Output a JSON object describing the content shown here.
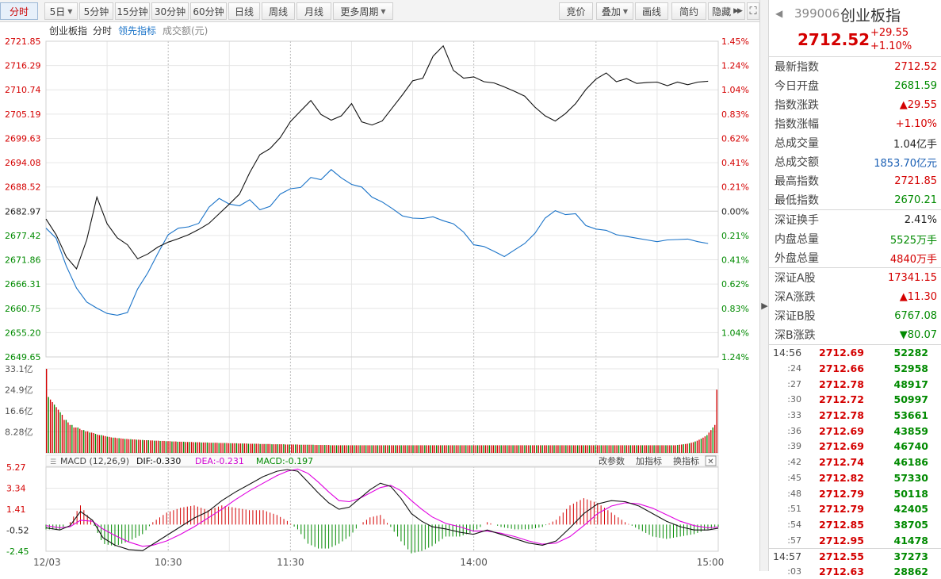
{
  "toolbar": {
    "left": [
      {
        "id": "period-1min",
        "label": "分时",
        "dd": false,
        "active": true
      },
      {
        "id": "period-5day",
        "label": "5日",
        "dd": true
      },
      {
        "id": "period-5min",
        "label": "5分钟"
      },
      {
        "id": "period-15min",
        "label": "15分钟"
      },
      {
        "id": "period-30min",
        "label": "30分钟"
      },
      {
        "id": "period-60min",
        "label": "60分钟"
      },
      {
        "id": "period-day",
        "label": "日线"
      },
      {
        "id": "period-week",
        "label": "周线"
      },
      {
        "id": "period-month",
        "label": "月线"
      },
      {
        "id": "period-more",
        "label": "更多周期",
        "dd": true
      }
    ],
    "right": [
      {
        "id": "auction",
        "label": "竞价"
      },
      {
        "id": "overlay",
        "label": "叠加",
        "dd": true
      },
      {
        "id": "draw",
        "label": "画线"
      },
      {
        "id": "simple",
        "label": "简约"
      },
      {
        "id": "hide",
        "label": "隐藏"
      }
    ]
  },
  "chart_header": {
    "name": "创业板指",
    "mode": "分时",
    "leading": "领先指标",
    "volume": "成交额(元)"
  },
  "price_axis_left": [
    "2721.85",
    "2716.29",
    "2710.74",
    "2705.19",
    "2699.63",
    "2694.08",
    "2688.52",
    "2682.97",
    "2677.42",
    "2671.86",
    "2666.31",
    "2660.75",
    "2655.20",
    "2649.65"
  ],
  "price_axis_right": [
    "1.45%",
    "1.24%",
    "1.04%",
    "0.83%",
    "0.62%",
    "0.41%",
    "0.21%",
    "0.00%",
    "0.21%",
    "0.41%",
    "0.62%",
    "0.83%",
    "1.04%",
    "1.24%"
  ],
  "volume_axis": [
    "33.1亿",
    "24.9亿",
    "16.6亿",
    "8.28亿"
  ],
  "macd_header": {
    "title": "MACD (12,26,9)",
    "dif": "DIF:-0.330",
    "dea": "DEA:-0.231",
    "macd": "MACD:-0.197",
    "adjust": "改参数",
    "add": "加指标",
    "switch": "换指标",
    "close": "✕"
  },
  "macd_axis": [
    "5.27",
    "3.34",
    "1.41",
    "-0.52",
    "-2.45"
  ],
  "time_axis": [
    "12/03",
    "10:30",
    "11:30",
    "14:00",
    "15:00"
  ],
  "colors": {
    "up": "#d40000",
    "down": "#008a00",
    "price_line": "#111111",
    "avg_line": "#1a73c8",
    "dif": "#111111",
    "dea": "#e000e0",
    "grid": "#e6e6e6"
  },
  "chart_data": {
    "type": "line",
    "prev_close": 2682.97,
    "price_range": [
      2649.65,
      2721.85
    ],
    "price": [
      [
        0,
        2681.2
      ],
      [
        5,
        2677.6
      ],
      [
        10,
        2672.5
      ],
      [
        15,
        2669.8
      ],
      [
        20,
        2676.4
      ],
      [
        25,
        2686.2
      ],
      [
        30,
        2680.1
      ],
      [
        35,
        2676.9
      ],
      [
        40,
        2675.3
      ],
      [
        45,
        2672.1
      ],
      [
        50,
        2673.2
      ],
      [
        55,
        2674.8
      ],
      [
        60,
        2675.9
      ],
      [
        65,
        2676.7
      ],
      [
        70,
        2677.6
      ],
      [
        75,
        2678.8
      ],
      [
        80,
        2680.2
      ],
      [
        85,
        2682.4
      ],
      [
        90,
        2684.6
      ],
      [
        95,
        2686.9
      ],
      [
        100,
        2691.8
      ],
      [
        105,
        2695.9
      ],
      [
        110,
        2697.3
      ],
      [
        115,
        2699.8
      ],
      [
        120,
        2703.5
      ],
      [
        125,
        2705.9
      ],
      [
        130,
        2708.3
      ],
      [
        135,
        2705.1
      ],
      [
        140,
        2703.8
      ],
      [
        145,
        2704.8
      ],
      [
        150,
        2707.6
      ],
      [
        155,
        2703.4
      ],
      [
        160,
        2702.7
      ],
      [
        165,
        2703.6
      ],
      [
        170,
        2706.6
      ],
      [
        175,
        2709.6
      ],
      [
        180,
        2712.8
      ],
      [
        185,
        2713.4
      ],
      [
        190,
        2718.4
      ],
      [
        195,
        2720.8
      ],
      [
        200,
        2715.2
      ],
      [
        205,
        2713.4
      ],
      [
        210,
        2713.7
      ],
      [
        215,
        2712.6
      ],
      [
        220,
        2712.3
      ],
      [
        225,
        2711.4
      ],
      [
        230,
        2710.4
      ],
      [
        235,
        2709.3
      ],
      [
        240,
        2706.8
      ],
      [
        245,
        2704.8
      ],
      [
        250,
        2703.6
      ],
      [
        255,
        2705.3
      ],
      [
        260,
        2707.6
      ],
      [
        265,
        2710.8
      ],
      [
        270,
        2713.2
      ],
      [
        275,
        2714.6
      ],
      [
        280,
        2712.6
      ],
      [
        285,
        2713.3
      ],
      [
        290,
        2712.2
      ],
      [
        295,
        2712.4
      ],
      [
        300,
        2712.5
      ],
      [
        305,
        2711.7
      ],
      [
        310,
        2712.5
      ],
      [
        315,
        2711.9
      ],
      [
        320,
        2712.5
      ],
      [
        325,
        2712.7
      ]
    ],
    "avg": [
      [
        0,
        2679.1
      ],
      [
        5,
        2676.8
      ],
      [
        10,
        2670.4
      ],
      [
        15,
        2665.4
      ],
      [
        20,
        2662.2
      ],
      [
        25,
        2660.8
      ],
      [
        30,
        2659.6
      ],
      [
        35,
        2659.2
      ],
      [
        40,
        2659.8
      ],
      [
        45,
        2665.2
      ],
      [
        50,
        2668.9
      ],
      [
        55,
        2673.4
      ],
      [
        60,
        2677.6
      ],
      [
        65,
        2679.1
      ],
      [
        70,
        2679.4
      ],
      [
        75,
        2680.2
      ],
      [
        80,
        2683.9
      ],
      [
        85,
        2685.9
      ],
      [
        90,
        2684.6
      ],
      [
        95,
        2684.2
      ],
      [
        100,
        2685.6
      ],
      [
        105,
        2683.3
      ],
      [
        110,
        2684.1
      ],
      [
        115,
        2686.9
      ],
      [
        120,
        2688.1
      ],
      [
        125,
        2688.4
      ],
      [
        130,
        2690.7
      ],
      [
        135,
        2690.2
      ],
      [
        140,
        2692.5
      ],
      [
        145,
        2690.6
      ],
      [
        150,
        2689.1
      ],
      [
        155,
        2688.5
      ],
      [
        160,
        2686.2
      ],
      [
        165,
        2685.1
      ],
      [
        170,
        2683.6
      ],
      [
        175,
        2681.9
      ],
      [
        180,
        2681.4
      ],
      [
        185,
        2681.3
      ],
      [
        190,
        2681.7
      ],
      [
        195,
        2680.8
      ],
      [
        200,
        2680.1
      ],
      [
        205,
        2678.2
      ],
      [
        210,
        2675.3
      ],
      [
        215,
        2674.9
      ],
      [
        220,
        2673.8
      ],
      [
        225,
        2672.6
      ],
      [
        230,
        2674.1
      ],
      [
        235,
        2675.6
      ],
      [
        240,
        2677.9
      ],
      [
        245,
        2681.4
      ],
      [
        250,
        2683.1
      ],
      [
        255,
        2682.2
      ],
      [
        260,
        2682.4
      ],
      [
        265,
        2679.7
      ],
      [
        270,
        2678.9
      ],
      [
        275,
        2678.6
      ],
      [
        280,
        2677.6
      ],
      [
        285,
        2677.2
      ],
      [
        290,
        2676.8
      ],
      [
        295,
        2676.4
      ],
      [
        300,
        2676.0
      ],
      [
        305,
        2676.4
      ],
      [
        310,
        2676.5
      ],
      [
        315,
        2676.6
      ],
      [
        320,
        2676.0
      ],
      [
        325,
        2675.6
      ]
    ],
    "volume_max": 33.1,
    "volume": [
      33.1,
      22,
      21,
      20,
      19,
      18,
      17,
      16,
      15,
      13,
      13,
      12,
      11,
      11,
      10,
      10,
      10,
      9.5,
      9,
      9,
      8.5,
      8.5,
      8,
      8,
      7.8,
      7.5,
      7.2,
      7,
      7,
      6.8,
      6.6,
      6.4,
      6.3,
      6.1,
      6,
      6,
      5.8,
      5.8,
      5.7,
      5.6,
      5.5,
      5.5,
      5.4,
      5.4,
      5.3,
      5.3,
      5.2,
      5.2,
      5.1,
      5.1,
      5,
      5,
      5,
      4.9,
      4.9,
      4.8,
      4.8,
      4.8,
      4.7,
      4.7,
      4.7,
      4.6,
      4.6,
      4.6,
      4.5,
      4.5,
      4.5,
      4.4,
      4.4,
      4.4,
      4.4,
      4.3,
      4.3,
      4.3,
      4.3,
      4.2,
      4.2,
      4.2,
      4.2,
      4.1,
      4.1,
      4.1,
      4.1,
      4,
      4,
      4,
      4,
      4,
      3.9,
      3.9,
      3.9,
      3.9,
      3.9,
      3.8,
      3.8,
      3.8,
      3.8,
      3.8,
      3.7,
      3.7,
      3.7,
      3.7,
      3.7,
      3.6,
      3.6,
      3.6,
      3.6,
      3.6,
      3.6,
      3.5,
      3.5,
      3.5,
      3.5,
      3.5,
      3.5,
      3.4,
      3.4,
      3.4,
      3.4,
      3.4,
      3.4,
      3.4,
      3.3,
      3.3,
      3.3,
      3.3,
      3.3,
      3.3,
      3.3,
      3.2,
      3.2,
      3.2,
      3.2,
      3.2,
      3.2,
      3.2,
      3.2,
      3.1,
      3.1,
      3.1,
      3.1,
      3.1,
      3.1,
      3.1,
      3.1,
      3,
      3,
      3,
      3,
      3,
      3,
      3,
      3,
      3,
      3,
      3,
      3,
      3,
      3,
      3,
      3,
      3,
      3,
      3,
      3,
      3,
      3,
      3,
      3,
      3,
      3,
      3,
      3,
      3,
      3,
      3,
      3,
      3,
      3,
      3,
      3,
      3,
      3,
      3,
      3,
      3,
      3,
      3,
      3,
      3,
      3,
      3,
      3,
      3,
      3,
      3,
      3,
      3,
      3,
      3,
      3,
      3,
      3,
      3,
      3,
      3,
      3,
      3,
      3,
      3,
      3,
      3,
      3,
      3,
      3,
      3,
      3,
      3,
      3,
      3,
      3,
      3,
      3,
      3,
      3,
      3,
      3,
      3,
      3,
      3,
      3,
      3,
      3,
      3,
      3,
      3,
      3,
      3,
      3,
      3,
      3,
      3,
      3,
      3,
      3,
      3,
      3,
      3,
      3,
      3,
      3,
      3,
      3,
      3,
      3,
      3,
      3,
      3,
      3,
      3,
      3,
      3,
      3,
      3,
      3,
      3,
      3,
      3,
      3,
      3,
      3,
      3,
      3,
      3,
      3,
      3,
      3,
      3,
      3,
      3,
      3,
      3,
      3,
      3,
      3,
      3,
      3,
      3,
      3,
      3,
      3,
      3,
      3,
      3,
      3,
      3,
      3,
      3,
      3,
      3,
      3,
      3,
      3,
      3,
      3,
      3,
      3,
      3,
      3,
      3,
      3,
      3,
      3,
      3,
      3,
      3,
      3,
      3,
      3,
      3,
      3,
      3,
      3.1,
      3.2,
      3.3,
      3.4,
      3.5,
      3.6,
      3.8,
      4,
      4.2,
      4.5,
      4.8,
      5.2,
      5.6,
      6,
      6.5,
      7,
      8,
      9,
      10,
      11,
      24.9
    ],
    "macd_range": [
      -2.45,
      5.27
    ],
    "dif": [
      [
        0,
        -0.3
      ],
      [
        8,
        -0.5
      ],
      [
        14,
        -0.1
      ],
      [
        20,
        1.2
      ],
      [
        27,
        0.4
      ],
      [
        33,
        -1.2
      ],
      [
        40,
        -1.9
      ],
      [
        48,
        -2.3
      ],
      [
        56,
        -2.4
      ],
      [
        62,
        -1.8
      ],
      [
        70,
        -1.0
      ],
      [
        78,
        -0.2
      ],
      [
        86,
        0.6
      ],
      [
        94,
        1.2
      ],
      [
        102,
        2.2
      ],
      [
        110,
        3.0
      ],
      [
        118,
        3.7
      ],
      [
        126,
        4.4
      ],
      [
        134,
        4.9
      ],
      [
        140,
        5.05
      ],
      [
        146,
        4.9
      ],
      [
        152,
        3.9
      ],
      [
        158,
        2.9
      ],
      [
        164,
        2.0
      ],
      [
        170,
        1.4
      ],
      [
        176,
        1.6
      ],
      [
        182,
        2.4
      ],
      [
        188,
        3.2
      ],
      [
        194,
        3.8
      ],
      [
        200,
        3.5
      ],
      [
        206,
        2.4
      ],
      [
        212,
        1.0
      ],
      [
        218,
        0.3
      ],
      [
        224,
        -0.2
      ],
      [
        232,
        -0.4
      ],
      [
        240,
        -0.7
      ],
      [
        248,
        -0.9
      ],
      [
        256,
        -0.5
      ],
      [
        264,
        -0.9
      ],
      [
        272,
        -1.3
      ],
      [
        280,
        -1.7
      ],
      [
        288,
        -1.9
      ],
      [
        296,
        -1.5
      ],
      [
        304,
        -0.3
      ],
      [
        312,
        1.0
      ],
      [
        320,
        1.9
      ],
      [
        328,
        2.2
      ],
      [
        336,
        2.1
      ],
      [
        344,
        1.7
      ],
      [
        352,
        1.0
      ],
      [
        360,
        0.3
      ],
      [
        368,
        -0.2
      ],
      [
        376,
        -0.5
      ],
      [
        384,
        -0.5
      ],
      [
        390,
        -0.33
      ]
    ],
    "dea": [
      [
        0,
        -0.1
      ],
      [
        8,
        -0.3
      ],
      [
        14,
        -0.2
      ],
      [
        20,
        0.4
      ],
      [
        27,
        0.3
      ],
      [
        33,
        -0.4
      ],
      [
        40,
        -1.0
      ],
      [
        48,
        -1.6
      ],
      [
        56,
        -2.0
      ],
      [
        62,
        -1.9
      ],
      [
        70,
        -1.5
      ],
      [
        78,
        -0.9
      ],
      [
        86,
        -0.2
      ],
      [
        94,
        0.6
      ],
      [
        102,
        1.4
      ],
      [
        110,
        2.3
      ],
      [
        118,
        3.1
      ],
      [
        126,
        3.8
      ],
      [
        134,
        4.5
      ],
      [
        140,
        4.9
      ],
      [
        146,
        5.1
      ],
      [
        152,
        4.7
      ],
      [
        158,
        3.9
      ],
      [
        164,
        3.0
      ],
      [
        170,
        2.2
      ],
      [
        176,
        2.1
      ],
      [
        182,
        2.4
      ],
      [
        188,
        2.9
      ],
      [
        194,
        3.4
      ],
      [
        200,
        3.6
      ],
      [
        206,
        3.1
      ],
      [
        212,
        2.2
      ],
      [
        218,
        1.4
      ],
      [
        224,
        0.7
      ],
      [
        232,
        0.1
      ],
      [
        240,
        -0.2
      ],
      [
        248,
        -0.6
      ],
      [
        256,
        -0.6
      ],
      [
        264,
        -0.8
      ],
      [
        272,
        -1.1
      ],
      [
        280,
        -1.5
      ],
      [
        288,
        -1.8
      ],
      [
        296,
        -1.7
      ],
      [
        304,
        -1.1
      ],
      [
        312,
        -0.1
      ],
      [
        320,
        1.0
      ],
      [
        328,
        1.7
      ],
      [
        336,
        2.0
      ],
      [
        344,
        1.9
      ],
      [
        352,
        1.5
      ],
      [
        360,
        0.9
      ],
      [
        368,
        0.3
      ],
      [
        376,
        -0.1
      ],
      [
        384,
        -0.3
      ],
      [
        390,
        -0.23
      ]
    ]
  },
  "panel": {
    "back": "◀",
    "code": "399006",
    "name": "创业板指",
    "current": "2712.52",
    "change": "+29.55",
    "change_pct": "+1.10%",
    "groups": [
      [
        {
          "label": "最新指数",
          "value": "2712.52",
          "c": "r"
        },
        {
          "label": "今日开盘",
          "value": "2681.59",
          "c": "g"
        },
        {
          "label": "指数涨跌",
          "value": "▲29.55",
          "c": "r"
        },
        {
          "label": "指数涨幅",
          "value": "+1.10%",
          "c": "r"
        },
        {
          "label": "总成交量",
          "value": "1.04亿手",
          "c": "k"
        },
        {
          "label": "总成交额",
          "value": "1853.70亿元",
          "c": "b"
        },
        {
          "label": "最高指数",
          "value": "2721.85",
          "c": "r"
        },
        {
          "label": "最低指数",
          "value": "2670.21",
          "c": "g"
        }
      ],
      [
        {
          "label": "深证换手",
          "value": "2.41%",
          "c": "k"
        },
        {
          "label": "内盘总量",
          "value": "5525万手",
          "c": "g"
        },
        {
          "label": "外盘总量",
          "value": "4840万手",
          "c": "r"
        }
      ],
      [
        {
          "label": "深证A股",
          "value": "17341.15",
          "c": "r"
        },
        {
          "label": "深A涨跌",
          "value": "▲11.30",
          "c": "r"
        },
        {
          "label": "深证B股",
          "value": "6767.08",
          "c": "g"
        },
        {
          "label": "深B涨跌",
          "value": "▼80.07",
          "c": "g"
        }
      ]
    ],
    "ticks": [
      {
        "t": "14:56",
        "p": "2712.69",
        "v": "52282",
        "big": true
      },
      {
        "t": ":24",
        "p": "2712.66",
        "v": "52958"
      },
      {
        "t": ":27",
        "p": "2712.78",
        "v": "48917"
      },
      {
        "t": ":30",
        "p": "2712.72",
        "v": "50997"
      },
      {
        "t": ":33",
        "p": "2712.78",
        "v": "53661"
      },
      {
        "t": ":36",
        "p": "2712.69",
        "v": "43859"
      },
      {
        "t": ":39",
        "p": "2712.69",
        "v": "46740"
      },
      {
        "t": ":42",
        "p": "2712.74",
        "v": "46186"
      },
      {
        "t": ":45",
        "p": "2712.82",
        "v": "57330"
      },
      {
        "t": ":48",
        "p": "2712.79",
        "v": "50118"
      },
      {
        "t": ":51",
        "p": "2712.79",
        "v": "42405"
      },
      {
        "t": ":54",
        "p": "2712.85",
        "v": "38705"
      },
      {
        "t": ":57",
        "p": "2712.95",
        "v": "41478"
      },
      {
        "t": "14:57",
        "p": "2712.55",
        "v": "37273",
        "big": true,
        "sep": true
      },
      {
        "t": ":03",
        "p": "2712.63",
        "v": "28862"
      }
    ]
  }
}
